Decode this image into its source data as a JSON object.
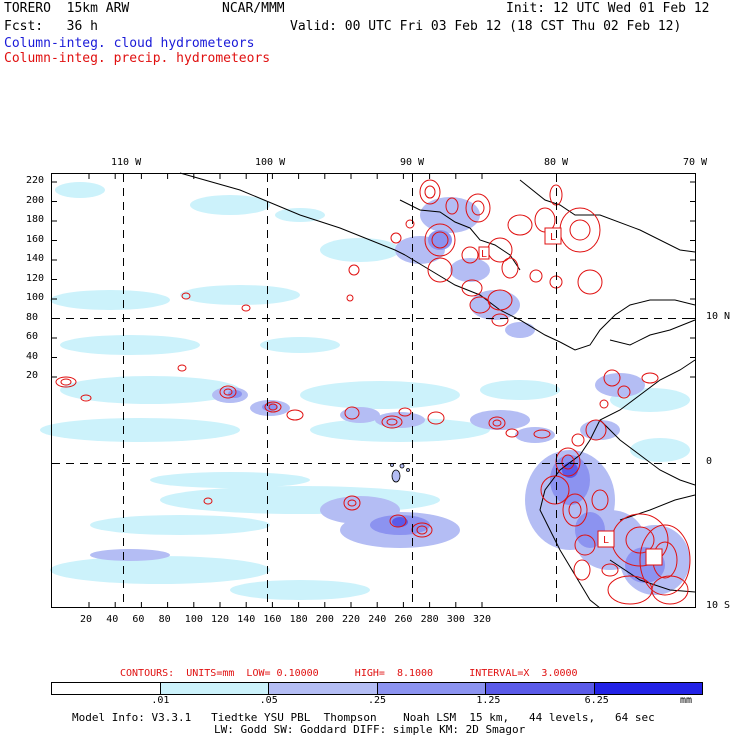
{
  "header": {
    "model": "TORERO  15km ARW",
    "center": "NCAR/MMM",
    "init": "Init: 12 UTC Wed 01 Feb 12",
    "fcst": "Fcst:   36 h",
    "valid": "Valid: 00 UTC Fri 03 Feb 12 (18 CST Thu 02 Feb 12)",
    "field1": "Column-integ. cloud hydrometeors",
    "field2": "Column-integ. precip. hydrometeors"
  },
  "axes": {
    "lon_labels": [
      "110 W",
      "100 W",
      "90 W",
      "80 W",
      "70 W"
    ],
    "lat_labels": [
      "10 N",
      "0",
      "10 S"
    ],
    "y_ticks": [
      "220",
      "200",
      "180",
      "160",
      "140",
      "120",
      "100",
      "80",
      "60",
      "40",
      "20"
    ],
    "x_ticks": [
      "20",
      "40",
      "60",
      "80",
      "100",
      "120",
      "140",
      "160",
      "180",
      "200",
      "220",
      "240",
      "260",
      "280",
      "300",
      "320"
    ]
  },
  "contour_info": {
    "text": "CONTOURS:  UNITS=mm  LOW= 0.10000      HIGH=  8.1000      INTERVAL=X  3.0000"
  },
  "colorbar": {
    "labels": [
      ".01",
      ".05",
      ".25",
      "1.25",
      "6.25"
    ],
    "unit": "mm",
    "colors": [
      "#ffffff",
      "#ccf2fb",
      "#b4bdf4",
      "#8c93f0",
      "#5a5ae8",
      "#2222e6"
    ]
  },
  "footer": {
    "line1": "Model Info: V3.3.1   Tiedtke YSU PBL  Thompson    Noah LSM  15 km,   44 levels,   64 sec",
    "line2": "LW: Godd SW: Goddard DIFF: simple KM: 2D Smagor"
  },
  "map_labels": {
    "low_marker": "L"
  },
  "colors": {
    "cloud_light": "#ccf2fb",
    "cloud_mid": "#b4bdf4",
    "cloud_dark": "#8c93f0",
    "cloud_deep": "#5a5ae8",
    "precip": "#e01010"
  }
}
